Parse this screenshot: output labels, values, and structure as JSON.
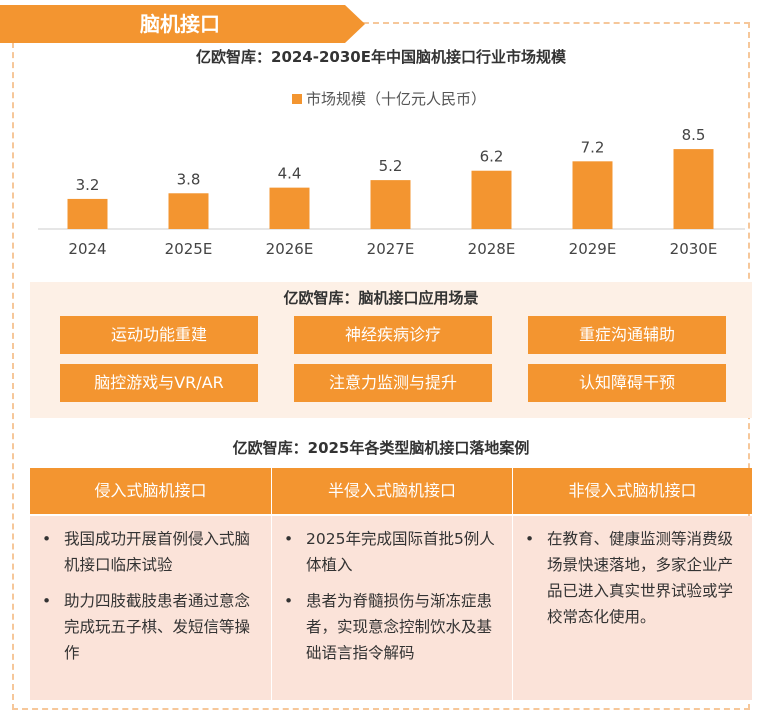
{
  "header": {
    "title": "脑机接口"
  },
  "chart_data": {
    "type": "bar",
    "title": "亿欧智库：2024-2030E年中国脑机接口行业市场规模",
    "categories": [
      "2024",
      "2025E",
      "2026E",
      "2027E",
      "2028E",
      "2029E",
      "2030E"
    ],
    "series": [
      {
        "name": "市场规模（十亿元人民币）",
        "color": "#f39530",
        "values": [
          3.2,
          3.8,
          4.4,
          5.2,
          6.2,
          7.2,
          8.5
        ]
      }
    ]
  },
  "scenarios": {
    "title": "亿欧智库：脑机接口应用场景",
    "items": [
      "运动功能重建",
      "神经疾病诊疗",
      "重症沟通辅助",
      "脑控游戏与VR/AR",
      "注意力监测与提升",
      "认知障碍干预"
    ]
  },
  "cases": {
    "title": "亿欧智库：2025年各类型脑机接口落地案例",
    "columns": [
      {
        "header": "侵入式脑机接口",
        "bullets": [
          "我国成功开展首例侵入式脑机接口临床试验",
          "助力四肢截肢患者通过意念完成玩五子棋、发短信等操作"
        ]
      },
      {
        "header": "半侵入式脑机接口",
        "bullets": [
          "2025年完成国际首批5例人体植入",
          "患者为脊髓损伤与渐冻症患者，实现意念控制饮水及基础语言指令解码"
        ]
      },
      {
        "header": "非侵入式脑机接口",
        "bullets": [
          "在教育、健康监测等消费级场景快速落地，多家企业产品已进入真实世界试验或学校常态化使用。"
        ]
      }
    ]
  }
}
